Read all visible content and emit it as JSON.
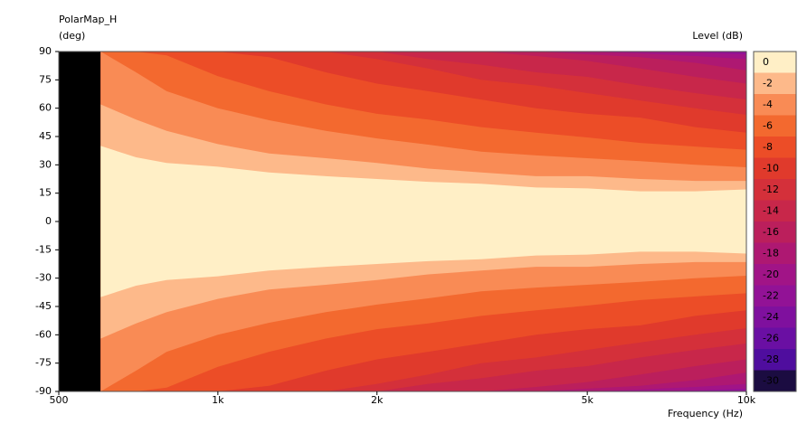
{
  "chart_data": {
    "type": "contour",
    "title": "PolarMap_H",
    "y_label": "(deg)",
    "colorbar_label": "Level  (dB)",
    "x_label": "Frequency  (Hz)",
    "xscale": "log",
    "xlim": [
      500,
      10000
    ],
    "xticks": [
      500,
      {
        "value": 1000,
        "label": "1k"
      },
      {
        "value": 2000,
        "label": "2k"
      },
      {
        "value": 5000,
        "label": "5k"
      },
      {
        "value": 10000,
        "label": "10k"
      }
    ],
    "ylim": [
      -90,
      90
    ],
    "yticks": [
      90,
      75,
      60,
      45,
      30,
      15,
      0,
      -15,
      -30,
      -45,
      -60,
      -75,
      -90
    ],
    "levels": [
      0,
      -2,
      -4,
      -6,
      -8,
      -10,
      -12,
      -14,
      -16,
      -18,
      -20,
      -22,
      -24,
      -26,
      -28,
      -30
    ],
    "colors": [
      "#ffefc6",
      "#fdb98a",
      "#f98b55",
      "#f3692f",
      "#ec4d27",
      "#e03a2c",
      "#d4303a",
      "#c8274a",
      "#bb1f5c",
      "#ae1872",
      "#a11487",
      "#921296",
      "#7f109e",
      "#6a0fa3",
      "#4f0d9e",
      "#1b0c41"
    ],
    "x": [
      600,
      700,
      800,
      1000,
      1250,
      1600,
      2000,
      2500,
      3150,
      4000,
      5000,
      6300,
      8000,
      10000
    ],
    "contours": [
      {
        "level": -1,
        "values": [
          40,
          34,
          31,
          29,
          26,
          24,
          22.5,
          21,
          20,
          18,
          17.5,
          16,
          16,
          17
        ]
      },
      {
        "level": -3,
        "values": [
          62,
          54,
          48,
          41,
          36,
          33.5,
          31,
          28,
          26,
          24,
          24,
          22.5,
          21.5,
          21.5
        ]
      },
      {
        "level": -5,
        "values": [
          null,
          79,
          69,
          60,
          53.6,
          48,
          44,
          40.7,
          37,
          35,
          33.5,
          32,
          30,
          28.7
        ]
      },
      {
        "level": -7,
        "values": [
          null,
          null,
          88,
          77,
          69,
          62,
          57,
          54,
          50,
          47,
          44.5,
          41.6,
          39.7,
          38
        ]
      },
      {
        "level": -9,
        "values": [
          null,
          null,
          null,
          null,
          87,
          79,
          73,
          69,
          64.6,
          60,
          57,
          55,
          50,
          47
        ]
      },
      {
        "level": -11,
        "values": [
          null,
          null,
          null,
          null,
          null,
          null,
          86,
          81,
          75,
          72,
          68,
          64,
          60,
          56.5
        ]
      },
      {
        "level": -13,
        "values": [
          null,
          null,
          null,
          null,
          null,
          null,
          null,
          86,
          83,
          79,
          76.6,
          72,
          68,
          64.6
        ]
      },
      {
        "level": -15,
        "values": [
          null,
          null,
          null,
          null,
          null,
          null,
          null,
          null,
          null,
          87.6,
          85,
          81,
          76.6,
          73
        ]
      },
      {
        "level": -17,
        "values": [
          null,
          null,
          null,
          null,
          null,
          null,
          null,
          null,
          null,
          null,
          88.5,
          87,
          84,
          80
        ]
      },
      {
        "level": -19,
        "values": [
          null,
          null,
          null,
          null,
          null,
          null,
          null,
          null,
          null,
          null,
          null,
          89,
          87.6,
          86
        ]
      },
      {
        "level": -21,
        "values": [
          null,
          null,
          null,
          null,
          null,
          null,
          null,
          null,
          null,
          null,
          null,
          null,
          89.5,
          88.5
        ]
      }
    ]
  }
}
